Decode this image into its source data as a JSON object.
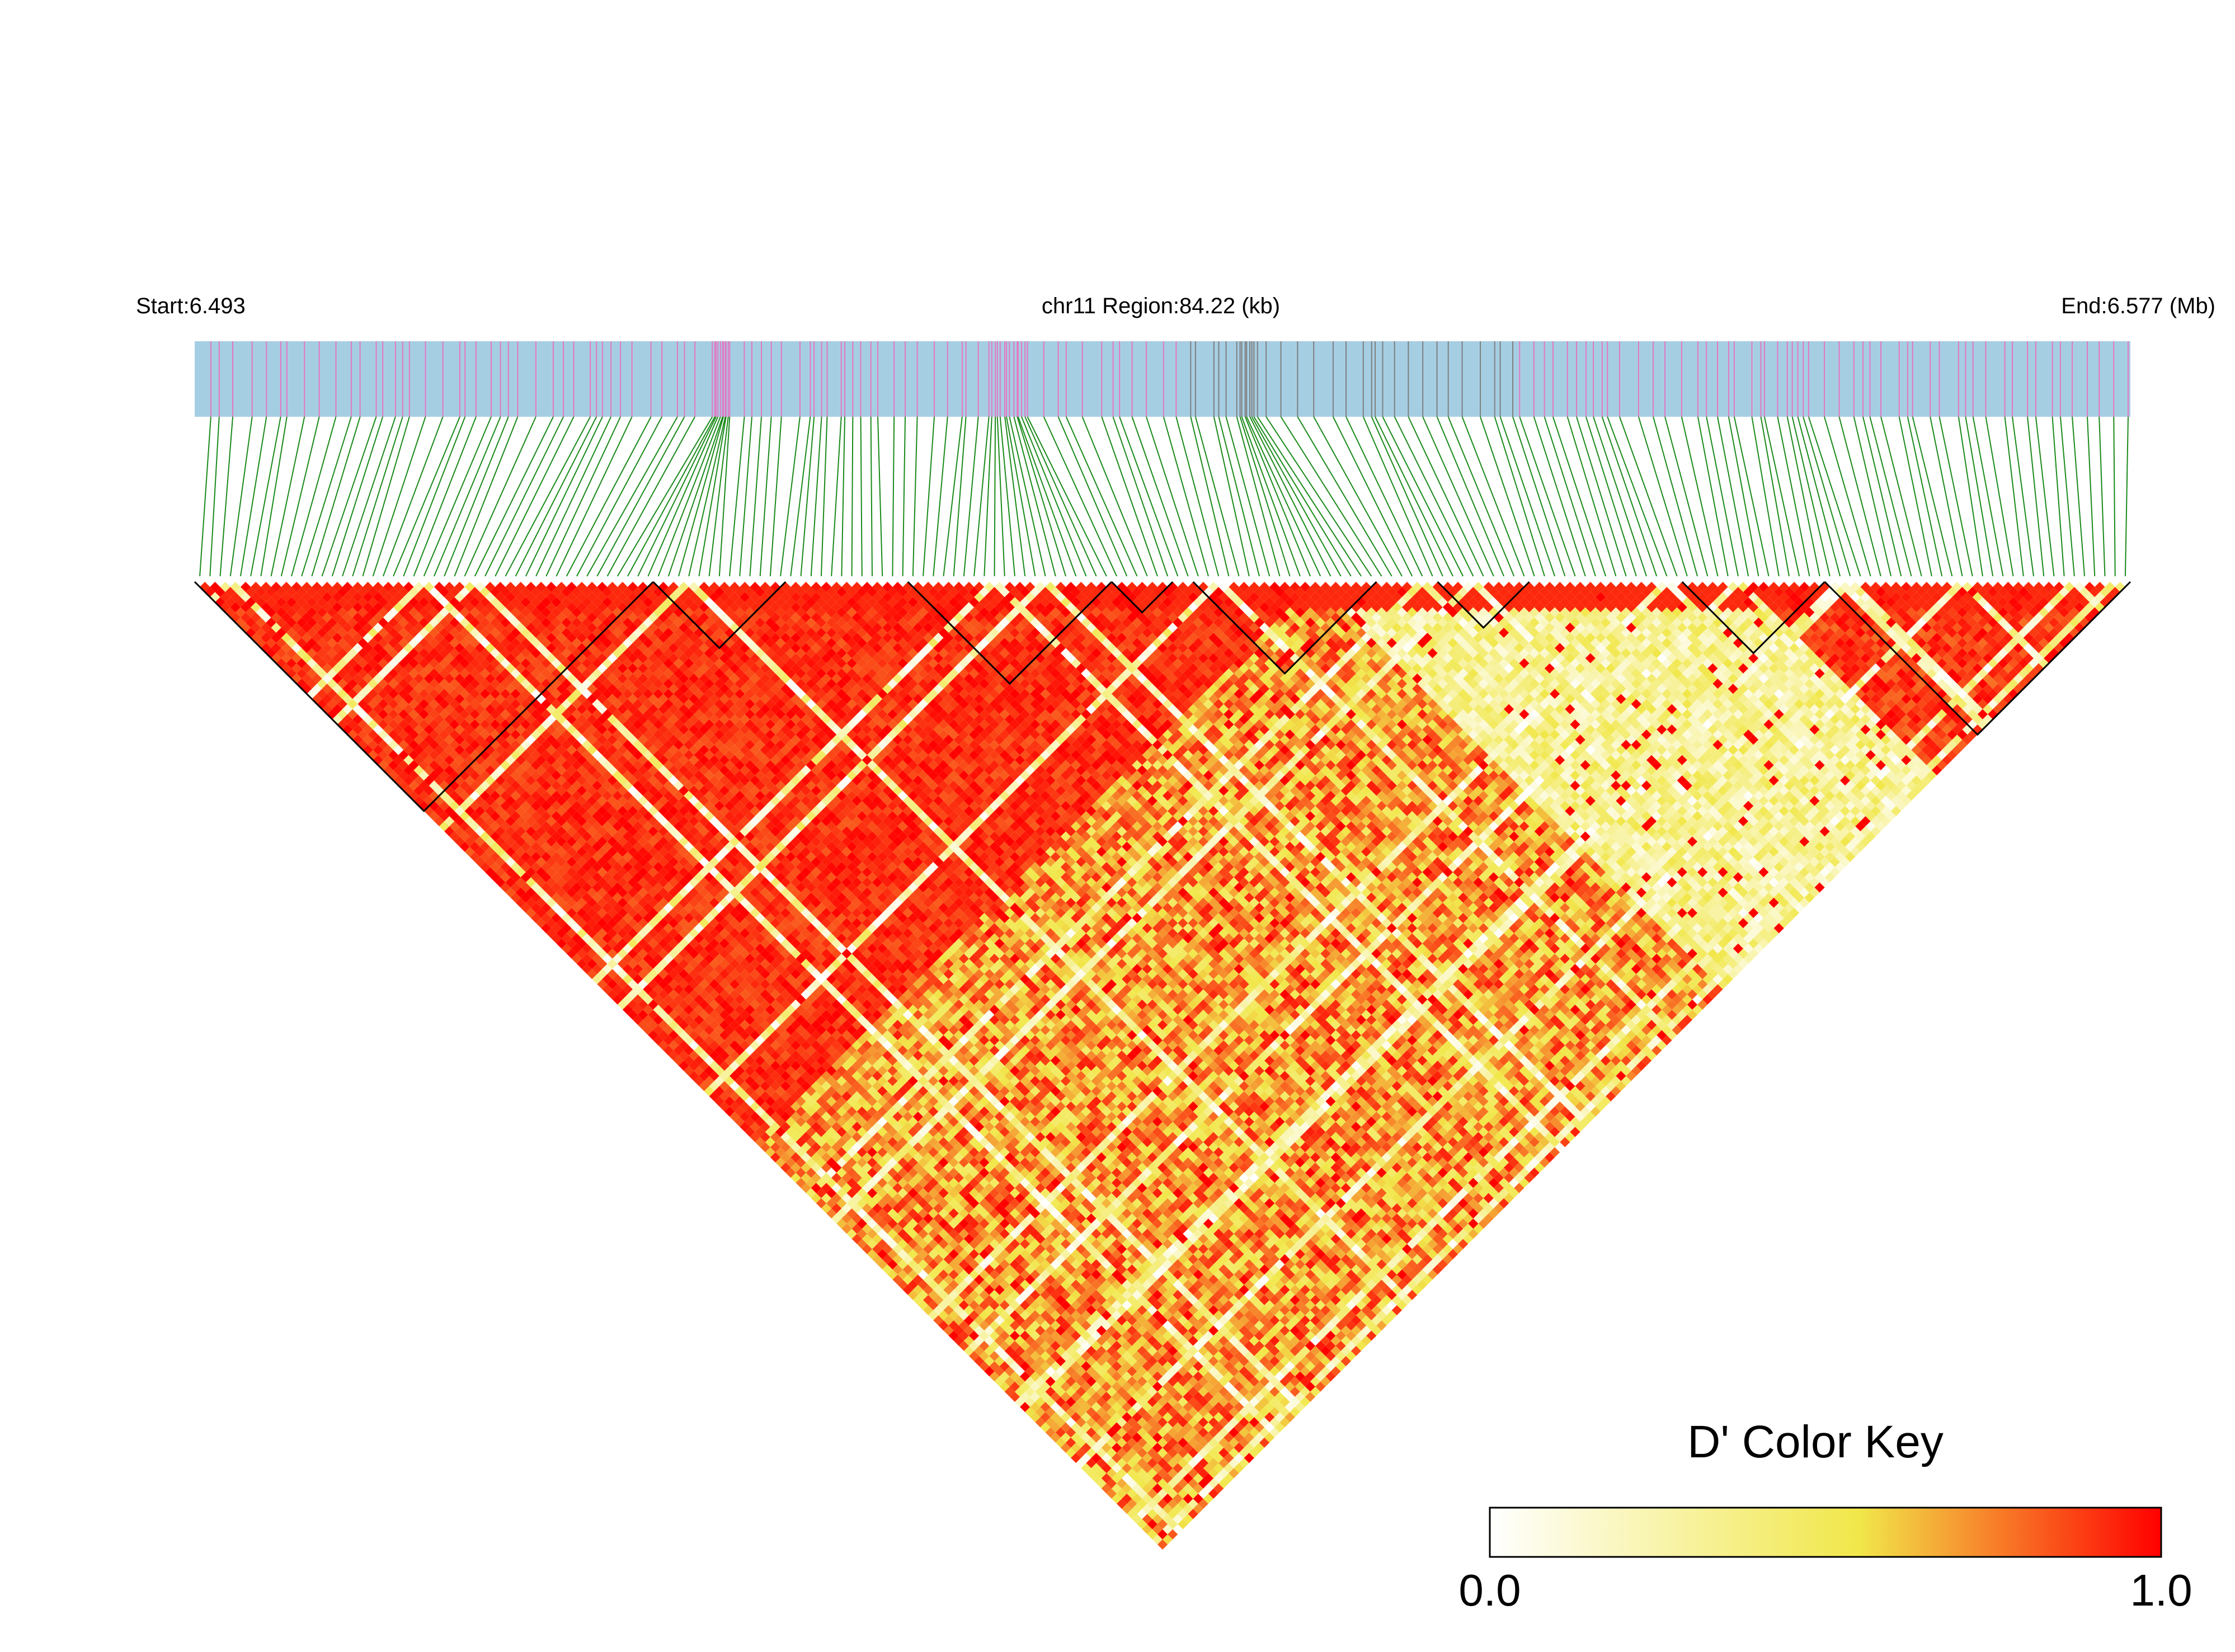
{
  "header": {
    "start_label": "Start:6.493",
    "region_label": "chr11 Region:84.22 (kb)",
    "end_label": "End:6.577 (Mb)"
  },
  "chart_data": {
    "type": "heatmap",
    "subtype": "ld-triangle",
    "metric": "D'",
    "chromosome": "chr11",
    "region_start_mb": 6.493,
    "region_end_mb": 6.577,
    "region_length_kb": 84.22,
    "snp_count": 190,
    "gene_track_color": "#a6cee3",
    "snp_tick_colors": [
      "#e377c2",
      "#7f7f7f"
    ],
    "connector_color": "#1a8a1a",
    "block_outline_color": "#000000",
    "color_key": {
      "title": "D' Color Key",
      "min": 0.0,
      "max": 1.0,
      "min_label": "0.0",
      "max_label": "1.0",
      "gradient": [
        "#ffffff",
        "#f1e74a",
        "#ff0000"
      ]
    },
    "note": "Pairwise D' values: strong LD (~0.9-1.0) among SNPs in the left half and the far-right block; weak LD (~0.1-0.4) between the middle-right SNPs; several haplotype blocks outlined along the top edge."
  }
}
